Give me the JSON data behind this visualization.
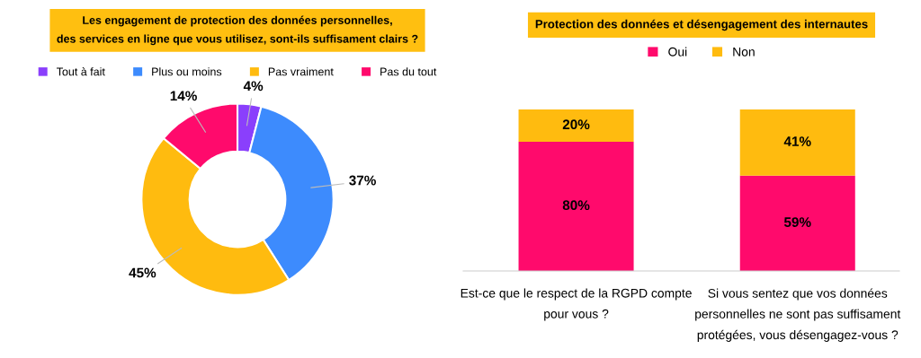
{
  "chart_data": [
    {
      "type": "donut",
      "title": "Les engagement de protection des données personnelles,\ndes services en ligne que vous utilisez, sont-ils suffisament clairs ?",
      "categories": [
        "Tout à fait",
        "Plus ou moins",
        "Pas vraiment",
        "Pas du tout"
      ],
      "values": [
        4,
        37,
        45,
        14
      ],
      "colors": [
        "#8a3ffc",
        "#3d8bfd",
        "#ffbb0f",
        "#ff0a6c"
      ],
      "value_labels": [
        "4%",
        "37%",
        "45%",
        "14%"
      ],
      "legend": "top"
    },
    {
      "type": "bar",
      "title": "Protection des données et désengagement des internautes",
      "categories": [
        "Est-ce que le respect de la RGPD compte\npour vous ?",
        "Si vous sentez que vos données\npersonnelles ne sont pas suffisament\nprotégées, vous désengagez-vous ?"
      ],
      "stacked": true,
      "legend": "top",
      "series": [
        {
          "name": "Oui",
          "color": "#ff0a6c",
          "values": [
            80,
            59
          ],
          "value_labels": [
            "80%",
            "59%"
          ]
        },
        {
          "name": "Non",
          "color": "#ffbb0f",
          "values": [
            20,
            41
          ],
          "value_labels": [
            "20%",
            "41%"
          ]
        }
      ]
    }
  ]
}
